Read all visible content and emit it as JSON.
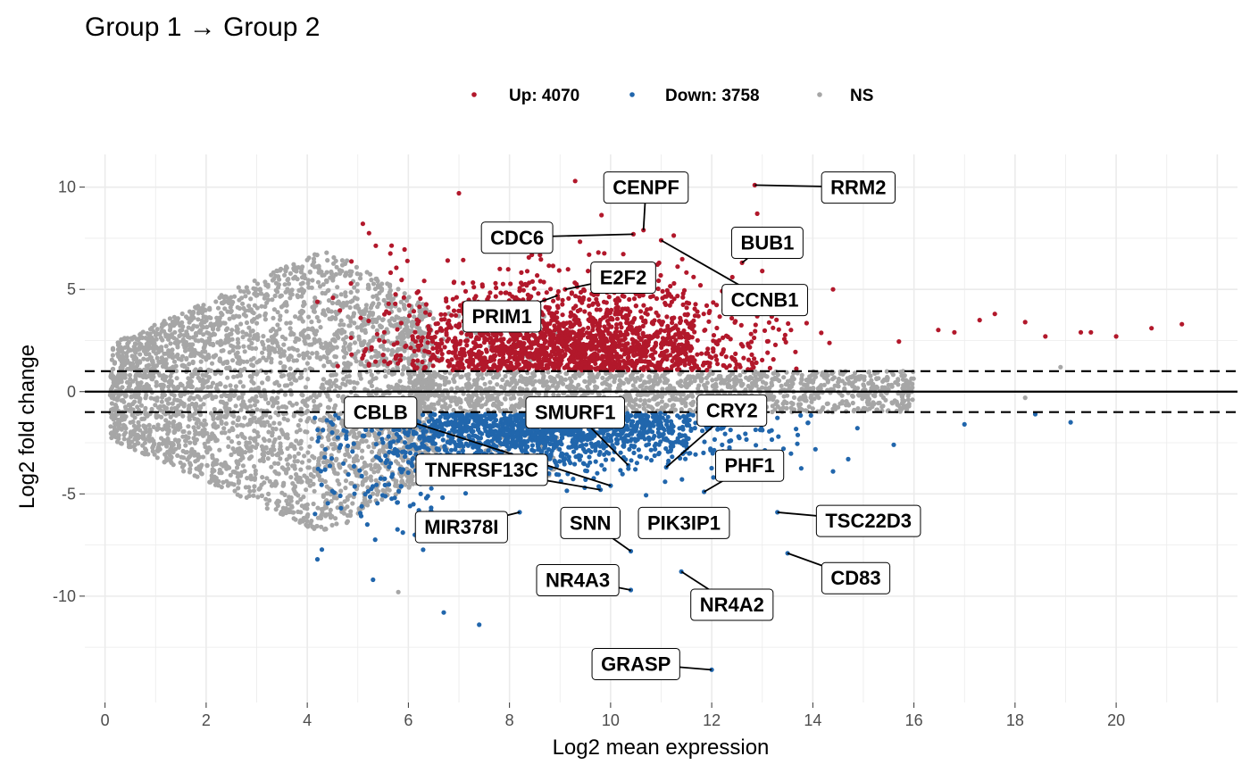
{
  "chart_data": {
    "type": "scatter",
    "title": "Group 1 → Group 2",
    "xlabel": "Log2 mean expression",
    "ylabel": "Log2 fold change",
    "xlim": [
      -0.4,
      22.4
    ],
    "ylim": [
      -15.2,
      11.6
    ],
    "x_ticks": [
      0,
      2,
      4,
      6,
      8,
      10,
      12,
      14,
      16,
      18,
      20
    ],
    "y_ticks": [
      -10,
      -5,
      0,
      5,
      10
    ],
    "grid": true,
    "hlines": [
      {
        "y": 0,
        "style": "solid"
      },
      {
        "y": 1,
        "style": "dashed"
      },
      {
        "y": -1,
        "style": "dashed"
      }
    ],
    "legend": {
      "position": "top",
      "entries": [
        {
          "label": "Up: 4070",
          "color": "#b2182b"
        },
        {
          "label": "Down: 3758",
          "color": "#2166ac"
        },
        {
          "label": "NS",
          "color": "#a6a6a6"
        }
      ]
    },
    "colors": {
      "up": "#b2182b",
      "down": "#2166ac",
      "ns": "#a6a6a6"
    },
    "labeled_genes": [
      {
        "gene": "RRM2",
        "x": 12.85,
        "y": 10.1,
        "label_x": 14.9,
        "label_y": 10.0
      },
      {
        "gene": "CENPF",
        "x": 10.65,
        "y": 7.9,
        "label_x": 10.7,
        "label_y": 10.0
      },
      {
        "gene": "CDC6",
        "x": 10.45,
        "y": 7.7,
        "label_x": 8.15,
        "label_y": 7.55
      },
      {
        "gene": "CCNB1",
        "x": 11.0,
        "y": 7.4,
        "label_x": 13.05,
        "label_y": 4.5
      },
      {
        "gene": "BUB1",
        "x": 12.6,
        "y": 6.3,
        "label_x": 13.1,
        "label_y": 7.3
      },
      {
        "gene": "E2F2",
        "x": 9.1,
        "y": 5.0,
        "label_x": 10.25,
        "label_y": 5.6
      },
      {
        "gene": "PRIM1",
        "x": 8.95,
        "y": 4.7,
        "label_x": 7.85,
        "label_y": 3.7
      },
      {
        "gene": "CBLB",
        "x": 10.0,
        "y": -4.6,
        "label_x": 5.45,
        "label_y": -1.0
      },
      {
        "gene": "SMURF1",
        "x": 10.35,
        "y": -3.6,
        "label_x": 9.3,
        "label_y": -1.0
      },
      {
        "gene": "CRY2",
        "x": 11.1,
        "y": -3.7,
        "label_x": 12.4,
        "label_y": -0.9
      },
      {
        "gene": "TNFRSF13C",
        "x": 9.8,
        "y": -4.8,
        "label_x": 7.45,
        "label_y": -3.8
      },
      {
        "gene": "PHF1",
        "x": 11.85,
        "y": -4.9,
        "label_x": 12.75,
        "label_y": -3.6
      },
      {
        "gene": "PIK3IP1",
        "x": 10.85,
        "y": -6.5,
        "label_x": 11.45,
        "label_y": -6.4
      },
      {
        "gene": "TSC22D3",
        "x": 13.3,
        "y": -5.9,
        "label_x": 15.1,
        "label_y": -6.3
      },
      {
        "gene": "MIR378I",
        "x": 8.2,
        "y": -5.9,
        "label_x": 7.05,
        "label_y": -6.6
      },
      {
        "gene": "SNN",
        "x": 10.4,
        "y": -7.8,
        "label_x": 9.6,
        "label_y": -6.4
      },
      {
        "gene": "NR4A3",
        "x": 10.4,
        "y": -9.7,
        "label_x": 9.35,
        "label_y": -9.2
      },
      {
        "gene": "NR4A2",
        "x": 11.4,
        "y": -8.8,
        "label_x": 12.4,
        "label_y": -10.4
      },
      {
        "gene": "CD83",
        "x": 13.5,
        "y": -7.9,
        "label_x": 14.85,
        "label_y": -9.1
      },
      {
        "gene": "GRASP",
        "x": 12.0,
        "y": -13.6,
        "label_x": 10.5,
        "label_y": -13.3
      }
    ],
    "outlier_points": [
      {
        "x": 21.3,
        "y": 3.3,
        "group": "up"
      },
      {
        "x": 20.7,
        "y": 3.1,
        "group": "up"
      },
      {
        "x": 20.0,
        "y": 2.7,
        "group": "up"
      },
      {
        "x": 19.5,
        "y": 2.9,
        "group": "up"
      },
      {
        "x": 19.3,
        "y": 2.9,
        "group": "up"
      },
      {
        "x": 18.6,
        "y": 2.7,
        "group": "up"
      },
      {
        "x": 18.2,
        "y": 3.4,
        "group": "up"
      },
      {
        "x": 17.6,
        "y": 3.8,
        "group": "up"
      },
      {
        "x": 17.3,
        "y": 3.5,
        "group": "up"
      },
      {
        "x": 16.8,
        "y": 2.9,
        "group": "up"
      },
      {
        "x": 14.4,
        "y": 5.0,
        "group": "up"
      },
      {
        "x": 12.9,
        "y": 8.7,
        "group": "up"
      },
      {
        "x": 13.0,
        "y": 5.9,
        "group": "up"
      },
      {
        "x": 9.3,
        "y": 10.3,
        "group": "up"
      },
      {
        "x": 7.0,
        "y": 9.7,
        "group": "up"
      },
      {
        "x": 18.9,
        "y": 1.2,
        "group": "ns"
      },
      {
        "x": 18.2,
        "y": -0.3,
        "group": "ns"
      },
      {
        "x": 19.1,
        "y": -1.5,
        "group": "down"
      },
      {
        "x": 18.4,
        "y": -1.1,
        "group": "down"
      },
      {
        "x": 17.0,
        "y": -1.6,
        "group": "down"
      },
      {
        "x": 14.4,
        "y": -3.9,
        "group": "down"
      },
      {
        "x": 14.7,
        "y": -3.3,
        "group": "down"
      },
      {
        "x": 15.6,
        "y": -2.6,
        "group": "down"
      },
      {
        "x": 6.7,
        "y": -10.8,
        "group": "down"
      },
      {
        "x": 7.4,
        "y": -11.4,
        "group": "down"
      },
      {
        "x": 5.3,
        "y": -9.2,
        "group": "down"
      },
      {
        "x": 5.8,
        "y": -9.8,
        "group": "ns"
      },
      {
        "x": 4.2,
        "y": -8.2,
        "group": "down"
      }
    ]
  }
}
